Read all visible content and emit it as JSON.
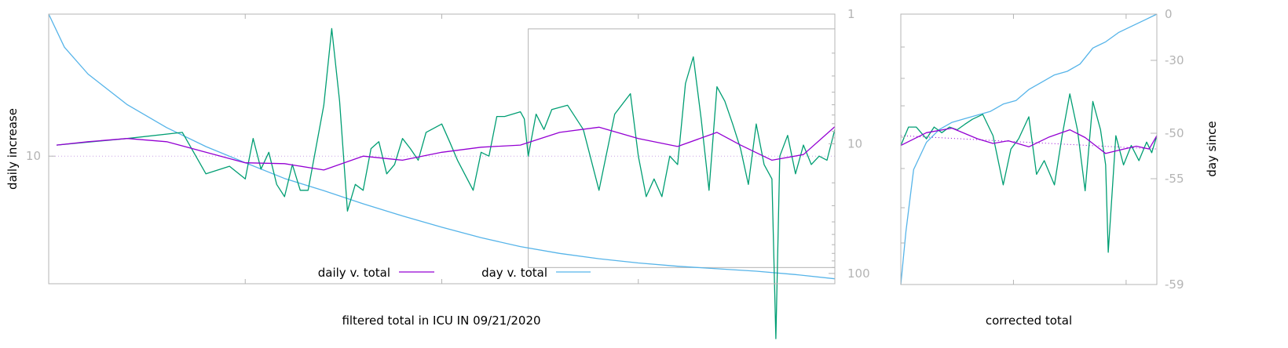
{
  "colors": {
    "daily": "#9400d3",
    "filtered": "#009e73",
    "day": "#56b4e9",
    "frame": "#b4b4b4",
    "grid": "#c8a0e6"
  },
  "chart_data": [
    {
      "type": "line",
      "xlabel": "filtered total in ICU IN 09/21/2020",
      "ylabel": "daily increase",
      "y2label": "",
      "yscale": "log",
      "y2scale": "log-reversed",
      "yticks": [
        {
          "value": 10,
          "label": "10"
        }
      ],
      "y2ticks": [
        {
          "value": 1,
          "label": "1"
        },
        {
          "value": 10,
          "label": "10"
        },
        {
          "value": 100,
          "label": "100"
        }
      ],
      "legend_position": "bottom-center",
      "legend": [
        {
          "label": "daily v. total",
          "series": "daily"
        },
        {
          "label": "day v. total",
          "series": "day"
        }
      ],
      "inset_box": {
        "x": [
          0.61,
          1.0
        ],
        "y2": [
          1.3,
          90
        ]
      },
      "series": [
        {
          "id": "daily",
          "axis": "y",
          "x": [
            0.01,
            0.05,
            0.1,
            0.15,
            0.2,
            0.25,
            0.3,
            0.35,
            0.4,
            0.45,
            0.5,
            0.55,
            0.6,
            0.65,
            0.7,
            0.75,
            0.8,
            0.85,
            0.88,
            0.92,
            0.96,
            1.0
          ],
          "y": [
            11.5,
            12.0,
            12.5,
            12.0,
            10.5,
            9.2,
            9.1,
            8.4,
            10.0,
            9.5,
            10.5,
            11.2,
            11.5,
            13.5,
            14.4,
            12.5,
            11.3,
            13.5,
            11.5,
            9.5,
            10.2,
            14.5
          ]
        },
        {
          "id": "filtered",
          "axis": "y",
          "x": [
            0.01,
            0.1,
            0.17,
            0.2,
            0.23,
            0.25,
            0.26,
            0.27,
            0.28,
            0.29,
            0.3,
            0.31,
            0.32,
            0.33,
            0.35,
            0.36,
            0.37,
            0.38,
            0.39,
            0.4,
            0.41,
            0.42,
            0.43,
            0.44,
            0.45,
            0.46,
            0.47,
            0.48,
            0.5,
            0.51,
            0.52,
            0.54,
            0.55,
            0.56,
            0.57,
            0.58,
            0.6,
            0.605,
            0.61,
            0.62,
            0.63,
            0.64,
            0.66,
            0.68,
            0.7,
            0.72,
            0.74,
            0.75,
            0.76,
            0.77,
            0.78,
            0.79,
            0.8,
            0.81,
            0.82,
            0.83,
            0.84,
            0.85,
            0.86,
            0.87,
            0.88,
            0.89,
            0.9,
            0.91,
            0.92,
            0.925,
            0.93,
            0.94,
            0.95,
            0.96,
            0.97,
            0.98,
            0.99,
            1.0
          ],
          "y": [
            11.5,
            12.5,
            13.5,
            8.0,
            8.8,
            7.5,
            12.5,
            8.5,
            10.5,
            7.0,
            6.0,
            9.0,
            6.5,
            6.5,
            19.0,
            50.0,
            20.0,
            5.0,
            7.0,
            6.5,
            11.0,
            12.0,
            8.0,
            9.0,
            12.5,
            11.0,
            9.5,
            13.5,
            15.0,
            12.0,
            9.5,
            6.5,
            10.5,
            10.0,
            16.5,
            16.5,
            17.5,
            16.0,
            10.0,
            17.0,
            14.0,
            18.0,
            19.0,
            14.0,
            6.5,
            17.0,
            22.0,
            10.0,
            6.0,
            7.5,
            6.0,
            10.0,
            9.0,
            25.0,
            35.0,
            16.0,
            6.5,
            24.0,
            20.0,
            15.0,
            11.0,
            7.0,
            15.0,
            9.0,
            7.5,
            1.0,
            10.0,
            13.0,
            8.0,
            11.5,
            9.0,
            10.0,
            9.5,
            14.0
          ]
        },
        {
          "id": "day",
          "axis": "y2",
          "x": [
            0.0,
            0.02,
            0.05,
            0.1,
            0.15,
            0.2,
            0.25,
            0.3,
            0.35,
            0.4,
            0.45,
            0.5,
            0.55,
            0.6,
            0.65,
            0.7,
            0.75,
            0.8,
            0.85,
            0.9,
            0.95,
            1.0
          ],
          "y": [
            1.0,
            1.8,
            2.9,
            5.0,
            7.5,
            10.5,
            14.0,
            18.5,
            23.0,
            29.0,
            36.0,
            44.0,
            53.0,
            62.0,
            70.0,
            77.0,
            83.0,
            88.0,
            92.0,
            96.0,
            102.0,
            110.0
          ]
        }
      ]
    },
    {
      "type": "line",
      "xlabel": "corrected total",
      "ylabel": "",
      "y2label": "day since",
      "y2ticks": [
        {
          "value": 0,
          "label": "0"
        },
        {
          "value": -30,
          "label": "-30"
        },
        {
          "value": -50,
          "label": "-50"
        },
        {
          "value": -55,
          "label": "-55"
        },
        {
          "value": -59,
          "label": "-59"
        }
      ],
      "series": [
        {
          "id": "daily",
          "axis": "y",
          "x": [
            0.0,
            0.1,
            0.2,
            0.3,
            0.36,
            0.42,
            0.5,
            0.58,
            0.66,
            0.72,
            0.8,
            0.86,
            0.92,
            0.97,
            1.0
          ],
          "y": [
            11.5,
            13.5,
            14.3,
            12.5,
            11.8,
            12.2,
            11.3,
            12.8,
            14.0,
            12.7,
            10.4,
            10.9,
            11.4,
            11.0,
            13.0
          ]
        },
        {
          "id": "filtered",
          "axis": "y",
          "x": [
            0.0,
            0.03,
            0.06,
            0.1,
            0.13,
            0.16,
            0.19,
            0.22,
            0.25,
            0.28,
            0.32,
            0.36,
            0.4,
            0.43,
            0.46,
            0.5,
            0.53,
            0.56,
            0.6,
            0.63,
            0.66,
            0.69,
            0.72,
            0.75,
            0.78,
            0.8,
            0.81,
            0.84,
            0.87,
            0.9,
            0.93,
            0.96,
            0.98,
            1.0
          ],
          "y": [
            11.5,
            14.5,
            14.5,
            12.5,
            14.5,
            13.5,
            14.5,
            14.0,
            15.0,
            16.0,
            17.0,
            13.0,
            7.0,
            11.0,
            12.5,
            16.5,
            8.0,
            9.5,
            7.0,
            13.0,
            22.0,
            14.0,
            6.5,
            20.0,
            14.0,
            9.0,
            3.0,
            13.0,
            9.0,
            11.5,
            9.5,
            12.0,
            10.5,
            13.0
          ]
        },
        {
          "id": "reference",
          "axis": "y",
          "style": "dotted",
          "x": [
            0.0,
            1.0
          ],
          "y": [
            13.0,
            11.0
          ]
        },
        {
          "id": "day",
          "axis": "y2",
          "x": [
            0.0,
            0.02,
            0.05,
            0.1,
            0.15,
            0.2,
            0.25,
            0.3,
            0.35,
            0.4,
            0.45,
            0.5,
            0.55,
            0.6,
            0.65,
            0.7,
            0.75,
            0.8,
            0.85,
            0.9,
            0.95,
            1.0
          ],
          "y": [
            -59.0,
            -57.0,
            -54.0,
            -51.0,
            -49.0,
            -47.0,
            -46.0,
            -45.0,
            -44.0,
            -42.0,
            -41.0,
            -38.0,
            -36.0,
            -34.0,
            -33.0,
            -31.0,
            -22.0,
            -18.0,
            -12.0,
            -8.0,
            -4.0,
            0.0
          ]
        }
      ]
    }
  ]
}
